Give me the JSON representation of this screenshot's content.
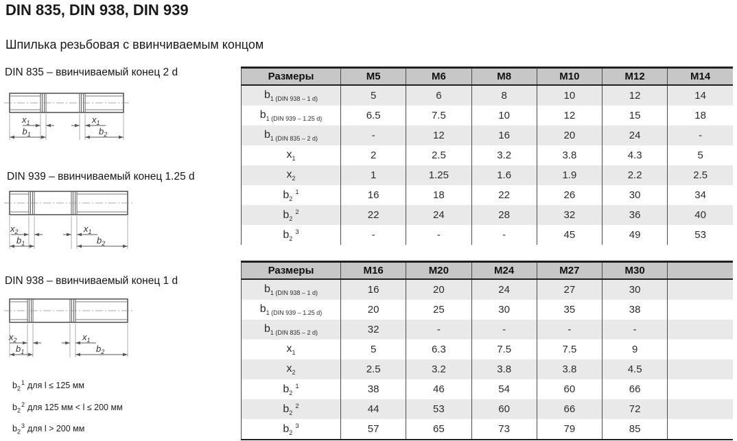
{
  "page": {
    "title": "DIN 835, DIN 938, DIN 939",
    "subtitle": "Шпилька резьбовая с ввинчиваемым концом"
  },
  "drawings": [
    {
      "caption": "DIN 835 – ввинчиваемый конец 2 d",
      "dims": {
        "left_x": {
          "base": "x",
          "sub": "1"
        },
        "right_x": {
          "base": "x",
          "sub": "1"
        },
        "left_b": {
          "base": "b",
          "sub": "1"
        },
        "right_b": {
          "base": "b",
          "sub": "2"
        }
      }
    },
    {
      "caption": "DIN 939 – ввинчиваемый конец 1.25 d",
      "dims": {
        "left_x": {
          "base": "x",
          "sub": "2"
        },
        "right_x": {
          "base": "x",
          "sub": "1"
        },
        "left_b": {
          "base": "b",
          "sub": "1"
        },
        "right_b": {
          "base": "b",
          "sub": "2"
        }
      }
    },
    {
      "caption": "DIN 938 – ввинчиваемый конец 1 d",
      "dims": {
        "left_x": {
          "base": "x",
          "sub": "2"
        },
        "right_x": {
          "base": "x",
          "sub": "1"
        },
        "left_b": {
          "base": "b",
          "sub": "1"
        },
        "right_b": {
          "base": "b",
          "sub": "2"
        }
      }
    }
  ],
  "footnotes": [
    {
      "base": "b",
      "sub": "2",
      "sup": "1",
      "text": "для l ≤ 125 мм"
    },
    {
      "base": "b",
      "sub": "2",
      "sup": "2",
      "text": "для 125 мм < l ≤ 200 мм"
    },
    {
      "base": "b",
      "sub": "2",
      "sup": "3",
      "text": "для l > 200 мм"
    }
  ],
  "colors": {
    "header_bg": "#c7c7c7",
    "row_shade": "#e9e9e9",
    "border": "#1f1f1f"
  },
  "tables": [
    {
      "header": [
        "Размеры",
        "M5",
        "M6",
        "M8",
        "M10",
        "M12",
        "M14"
      ],
      "rows": [
        {
          "label": {
            "main": "b",
            "sub": "1 (DIN 938 – 1 d)"
          },
          "shaded": true,
          "values": [
            "5",
            "6",
            "8",
            "10",
            "12",
            "14"
          ]
        },
        {
          "label": {
            "main": "b",
            "sub": "1 (DIN 939 – 1.25 d)"
          },
          "shaded": false,
          "values": [
            "6.5",
            "7.5",
            "10",
            "12",
            "15",
            "18"
          ]
        },
        {
          "label": {
            "main": "b",
            "sub": "1 (DIN 835 – 2 d)"
          },
          "shaded": true,
          "values": [
            "-",
            "12",
            "16",
            "20",
            "24",
            "-"
          ]
        },
        {
          "label": {
            "main": "x",
            "sub": "1"
          },
          "shaded": false,
          "values": [
            "2",
            "2.5",
            "3.2",
            "3.8",
            "4.3",
            "5"
          ]
        },
        {
          "label": {
            "main": "x",
            "sub": "2"
          },
          "shaded": true,
          "values": [
            "1",
            "1.25",
            "1.6",
            "1.9",
            "2.2",
            "2.5"
          ]
        },
        {
          "label": {
            "main": "b",
            "sub": "2",
            "sup": "1"
          },
          "shaded": false,
          "values": [
            "16",
            "18",
            "22",
            "26",
            "30",
            "34"
          ]
        },
        {
          "label": {
            "main": "b",
            "sub": "2",
            "sup": "2"
          },
          "shaded": true,
          "values": [
            "22",
            "24",
            "28",
            "32",
            "36",
            "40"
          ]
        },
        {
          "label": {
            "main": "b",
            "sub": "2",
            "sup": "3"
          },
          "shaded": false,
          "values": [
            "-",
            "-",
            "-",
            "45",
            "49",
            "53"
          ]
        }
      ]
    },
    {
      "header": [
        "Размеры",
        "M16",
        "M20",
        "M24",
        "M27",
        "M30",
        ""
      ],
      "rows": [
        {
          "label": {
            "main": "b",
            "sub": "1 (DIN 938 – 1 d)"
          },
          "shaded": true,
          "values": [
            "16",
            "20",
            "24",
            "27",
            "30",
            ""
          ]
        },
        {
          "label": {
            "main": "b",
            "sub": "1 (DIN 939 – 1.25 d)"
          },
          "shaded": false,
          "values": [
            "20",
            "25",
            "30",
            "35",
            "38",
            ""
          ]
        },
        {
          "label": {
            "main": "b",
            "sub": "1 (DIN 835 – 2 d)"
          },
          "shaded": true,
          "values": [
            "32",
            "-",
            "-",
            "-",
            "-",
            ""
          ]
        },
        {
          "label": {
            "main": "x",
            "sub": "1"
          },
          "shaded": false,
          "values": [
            "5",
            "6.3",
            "7.5",
            "7.5",
            "9",
            ""
          ]
        },
        {
          "label": {
            "main": "x",
            "sub": "2"
          },
          "shaded": true,
          "values": [
            "2.5",
            "3.2",
            "3.8",
            "3.8",
            "4.5",
            ""
          ]
        },
        {
          "label": {
            "main": "b",
            "sub": "2",
            "sup": "1"
          },
          "shaded": false,
          "values": [
            "38",
            "46",
            "54",
            "60",
            "66",
            ""
          ]
        },
        {
          "label": {
            "main": "b",
            "sub": "2",
            "sup": "2"
          },
          "shaded": true,
          "values": [
            "44",
            "53",
            "60",
            "66",
            "72",
            ""
          ]
        },
        {
          "label": {
            "main": "b",
            "sub": "2",
            "sup": "3"
          },
          "shaded": false,
          "values": [
            "57",
            "65",
            "73",
            "79",
            "85",
            ""
          ]
        }
      ]
    }
  ]
}
